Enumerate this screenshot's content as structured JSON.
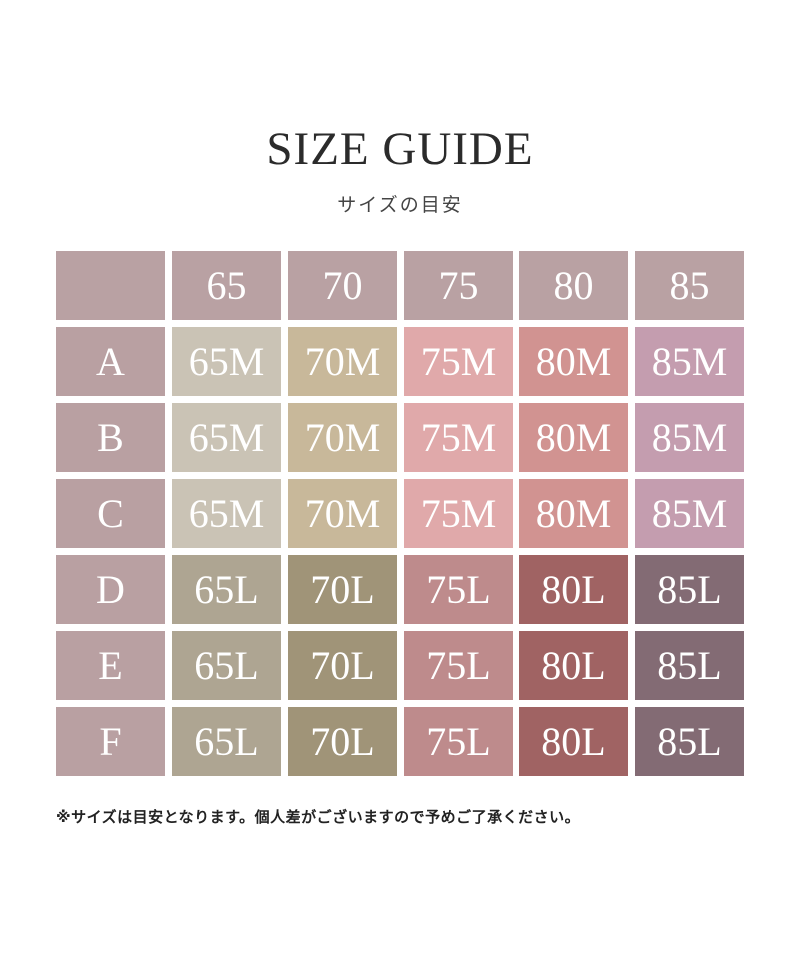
{
  "title": "SIZE GUIDE",
  "subtitle": "サイズの目安",
  "table": {
    "corner": "",
    "columns": [
      "65",
      "70",
      "75",
      "80",
      "85"
    ],
    "rows": [
      {
        "label": "A",
        "cells": [
          "65M",
          "70M",
          "75M",
          "80M",
          "85M"
        ]
      },
      {
        "label": "B",
        "cells": [
          "65M",
          "70M",
          "75M",
          "80M",
          "85M"
        ]
      },
      {
        "label": "C",
        "cells": [
          "65M",
          "70M",
          "75M",
          "80M",
          "85M"
        ]
      },
      {
        "label": "D",
        "cells": [
          "65L",
          "70L",
          "75L",
          "80L",
          "85L"
        ]
      },
      {
        "label": "E",
        "cells": [
          "65L",
          "70L",
          "75L",
          "80L",
          "85L"
        ]
      },
      {
        "label": "F",
        "cells": [
          "65L",
          "70L",
          "75L",
          "80L",
          "85L"
        ]
      }
    ]
  },
  "colors": {
    "header": "#b9a1a3",
    "row_header": "#b9a0a2",
    "M": [
      "#cac3b5",
      "#c8b89a",
      "#e0a9aa",
      "#d19391",
      "#c49daf"
    ],
    "L": [
      "#aea592",
      "#a09478",
      "#be8b8c",
      "#a06363",
      "#836b74"
    ]
  },
  "note": "※サイズは目安となります。個人差がございますので予めご了承ください。"
}
